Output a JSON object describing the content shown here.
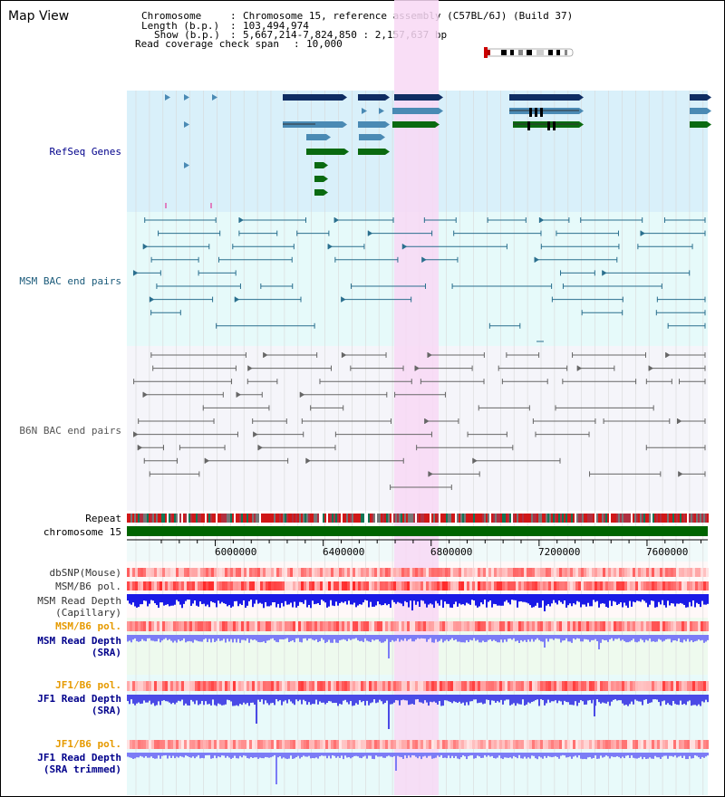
{
  "app": {
    "title": "Map View"
  },
  "info": {
    "chromosome_label": "Chromosome",
    "chromosome_value": "Chromosome 15, reference assembly (C57BL/6J) (Build 37)",
    "length_label": "Length (b.p.)",
    "length_value": "103,494,974",
    "show_label": "Show (b.p.)",
    "show_value": "5,667,214-7,824,850 : 2,157,637 bp",
    "coverage_label": "Read coverage check span",
    "coverage_value": "10,000"
  },
  "tracks": {
    "refseq": "RefSeq Genes",
    "msm_bac": "MSM BAC end pairs",
    "b6n_bac": "B6N BAC end pairs",
    "repeat": "Repeat",
    "chromosome": "chromosome 15",
    "dbsnp": "dbSNP(Mouse)",
    "msm_b6_pol_1": "MSM/B6 pol.",
    "msm_read_depth_cap_1": "MSM Read Depth",
    "msm_read_depth_cap_2": "(Capillary)",
    "msm_b6_pol_2": "MSM/B6 pol.",
    "msm_read_depth_sra_1": "MSM Read Depth",
    "msm_read_depth_sra_2": "(SRA)",
    "jf1_b6_pol_1": "JF1/B6 pol.",
    "jf1_read_depth_sra_1": "JF1 Read Depth",
    "jf1_read_depth_sra_2": "(SRA)",
    "jf1_b6_pol_2": "JF1/B6 pol.",
    "jf1_read_depth_trim_1": "JF1 Read Depth",
    "jf1_read_depth_trim_2": "(SRA trimmed)"
  },
  "axis": {
    "ticks": [
      "6000000",
      "6400000",
      "6800000",
      "7200000",
      "7600000"
    ]
  },
  "colors": {
    "refseq_bg": "#d9f0fa",
    "msm_bg": "#e6fafa",
    "b6n_bg": "#f5f5fa",
    "highlight": "#f8d8f4",
    "gene_dark": "#0f2d63",
    "gene_mid": "#4a8ab4",
    "gene_green": "#0a6a10",
    "msm_line": "#2a6f8e",
    "b6n_line": "#666666",
    "depth_blue": "#1a1ae6",
    "depth_light": "#7c7cf6",
    "label_navy": "#00008b",
    "label_orange": "#e69a00"
  }
}
